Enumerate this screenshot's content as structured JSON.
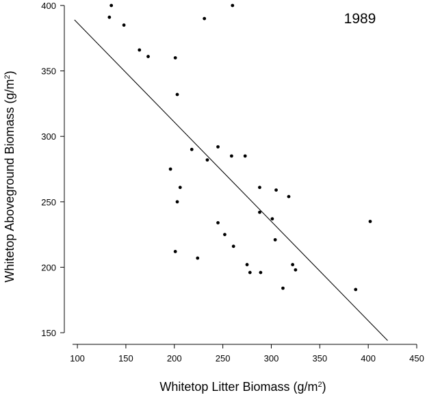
{
  "chart_data": {
    "type": "scatter",
    "annotation": "1989",
    "xlabel": {
      "text": "Whitetop Litter Biomass (g/m",
      "sup": "2",
      "tail": ")"
    },
    "ylabel": {
      "text": "Whitetop Aboveground Biomass (g/m",
      "sup": "2",
      "tail": ")"
    },
    "xlim": [
      95,
      450
    ],
    "ylim": [
      150,
      400
    ],
    "xticks": [
      100,
      150,
      200,
      250,
      300,
      350,
      400,
      450
    ],
    "yticks": [
      150,
      200,
      250,
      300,
      350,
      400
    ],
    "grid": false,
    "points": [
      {
        "x": 135,
        "y": 400
      },
      {
        "x": 133,
        "y": 391
      },
      {
        "x": 148,
        "y": 385
      },
      {
        "x": 231,
        "y": 390
      },
      {
        "x": 260,
        "y": 400
      },
      {
        "x": 164,
        "y": 366
      },
      {
        "x": 173,
        "y": 361
      },
      {
        "x": 201,
        "y": 360
      },
      {
        "x": 203,
        "y": 332
      },
      {
        "x": 218,
        "y": 290
      },
      {
        "x": 245,
        "y": 292
      },
      {
        "x": 234,
        "y": 282
      },
      {
        "x": 259,
        "y": 285
      },
      {
        "x": 273,
        "y": 285
      },
      {
        "x": 196,
        "y": 275
      },
      {
        "x": 206,
        "y": 261
      },
      {
        "x": 203,
        "y": 250
      },
      {
        "x": 288,
        "y": 261
      },
      {
        "x": 305,
        "y": 259
      },
      {
        "x": 318,
        "y": 254
      },
      {
        "x": 288,
        "y": 242
      },
      {
        "x": 301,
        "y": 237
      },
      {
        "x": 245,
        "y": 234
      },
      {
        "x": 252,
        "y": 225
      },
      {
        "x": 304,
        "y": 221
      },
      {
        "x": 261,
        "y": 216
      },
      {
        "x": 201,
        "y": 212
      },
      {
        "x": 224,
        "y": 207
      },
      {
        "x": 275,
        "y": 202
      },
      {
        "x": 278,
        "y": 196
      },
      {
        "x": 289,
        "y": 196
      },
      {
        "x": 322,
        "y": 202
      },
      {
        "x": 325,
        "y": 198
      },
      {
        "x": 312,
        "y": 184
      },
      {
        "x": 387,
        "y": 183
      },
      {
        "x": 402,
        "y": 235
      }
    ],
    "regression_line": {
      "x1": 97,
      "y1": 389,
      "x2": 420,
      "y2": 144
    }
  }
}
